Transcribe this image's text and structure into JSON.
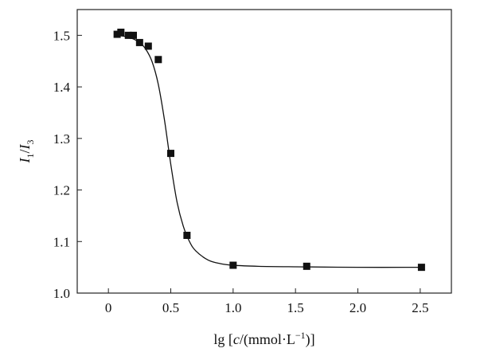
{
  "chart_data": {
    "type": "scatter",
    "title": "",
    "xlabel": {
      "prefix": "lg [",
      "var": "c",
      "middle": "/(mmol·L",
      "sup": "−1",
      "suffix": ")]"
    },
    "ylabel": {
      "base1": "I",
      "sub1": "1",
      "sep": "/",
      "base2": "I",
      "sub2": "3"
    },
    "xlim": [
      -0.25,
      2.75
    ],
    "ylim": [
      1.0,
      1.55
    ],
    "xticks": [
      0,
      0.5,
      1.0,
      1.5,
      2.0,
      2.5
    ],
    "xtick_labels": [
      "0",
      "0.5",
      "1.0",
      "1.5",
      "2.0",
      "2.5"
    ],
    "yticks": [
      1.0,
      1.1,
      1.2,
      1.3,
      1.4,
      1.5
    ],
    "ytick_labels": [
      "1.0",
      "1.1",
      "1.2",
      "1.3",
      "1.4",
      "1.5"
    ],
    "grid": false,
    "series": [
      {
        "marker": "square",
        "points": [
          {
            "x": 0.07,
            "y": 1.502
          },
          {
            "x": 0.1,
            "y": 1.506
          },
          {
            "x": 0.16,
            "y": 1.5
          },
          {
            "x": 0.2,
            "y": 1.5
          },
          {
            "x": 0.25,
            "y": 1.486
          },
          {
            "x": 0.32,
            "y": 1.479
          },
          {
            "x": 0.4,
            "y": 1.453
          },
          {
            "x": 0.5,
            "y": 1.271
          },
          {
            "x": 0.63,
            "y": 1.112
          },
          {
            "x": 1.0,
            "y": 1.054
          },
          {
            "x": 1.59,
            "y": 1.052
          },
          {
            "x": 2.51,
            "y": 1.05
          }
        ]
      }
    ],
    "fit_curve": [
      {
        "x": 0.07,
        "y": 1.5
      },
      {
        "x": 0.1,
        "y": 1.499
      },
      {
        "x": 0.15,
        "y": 1.497
      },
      {
        "x": 0.2,
        "y": 1.493
      },
      {
        "x": 0.25,
        "y": 1.486
      },
      {
        "x": 0.3,
        "y": 1.473
      },
      {
        "x": 0.35,
        "y": 1.449
      },
      {
        "x": 0.4,
        "y": 1.405
      },
      {
        "x": 0.45,
        "y": 1.335
      },
      {
        "x": 0.5,
        "y": 1.25
      },
      {
        "x": 0.55,
        "y": 1.177
      },
      {
        "x": 0.6,
        "y": 1.13
      },
      {
        "x": 0.65,
        "y": 1.1
      },
      {
        "x": 0.7,
        "y": 1.082
      },
      {
        "x": 0.8,
        "y": 1.064
      },
      {
        "x": 0.9,
        "y": 1.057
      },
      {
        "x": 1.0,
        "y": 1.054
      },
      {
        "x": 1.2,
        "y": 1.052
      },
      {
        "x": 1.5,
        "y": 1.051
      },
      {
        "x": 2.0,
        "y": 1.05
      },
      {
        "x": 2.51,
        "y": 1.05
      }
    ],
    "colors": {
      "marker": "#111111",
      "curve": "#111111",
      "axis": "#222222"
    }
  }
}
